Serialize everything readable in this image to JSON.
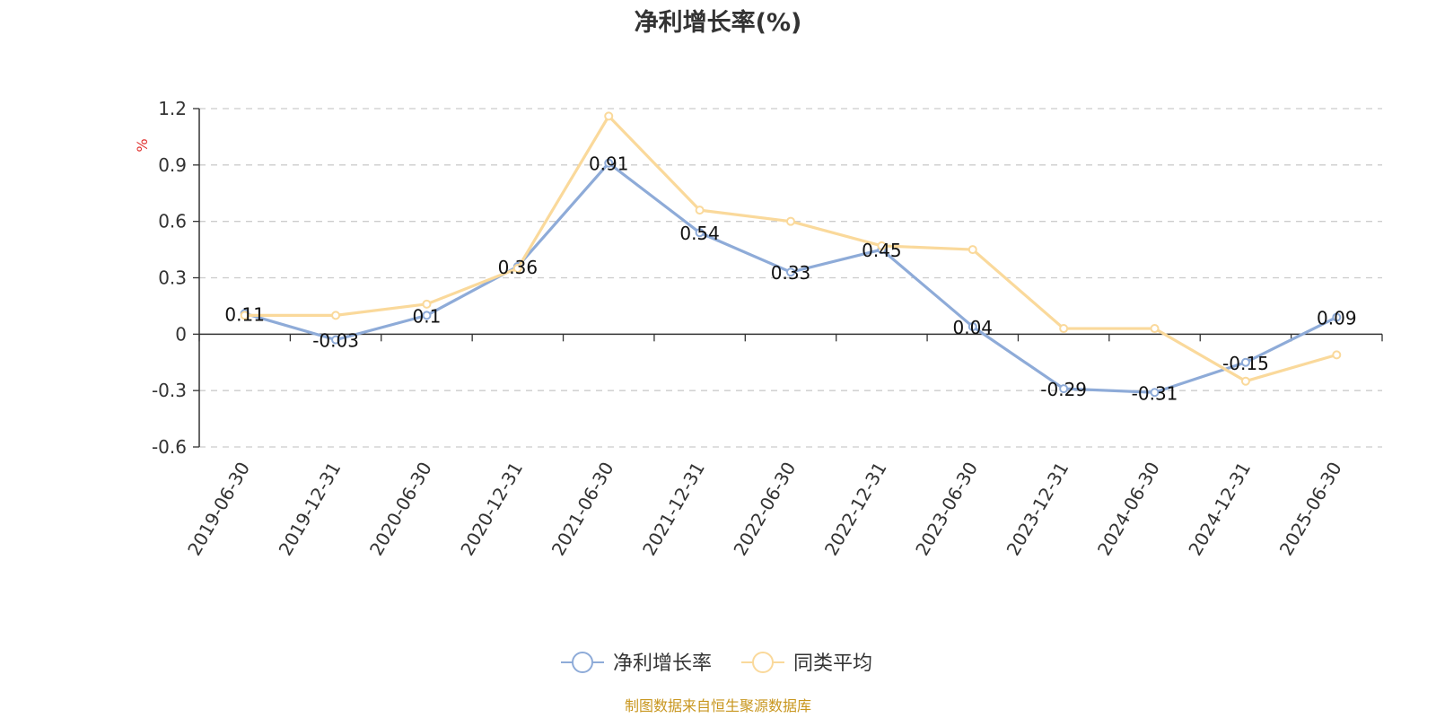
{
  "chart_data": {
    "type": "line",
    "title": "净利增长率(%)",
    "ylabel": "%",
    "xlabel": "",
    "ylim": [
      -0.6,
      1.2
    ],
    "yticks": [
      -0.6,
      -0.3,
      0,
      0.3,
      0.6,
      0.9,
      1.2
    ],
    "ytick_labels": [
      "-0.6",
      "-0.3",
      "0",
      "0.3",
      "0.6",
      "0.9",
      "1.2"
    ],
    "grid": true,
    "legend_position": "bottom",
    "categories": [
      "2019-06-30",
      "2019-12-31",
      "2020-06-30",
      "2020-12-31",
      "2021-06-30",
      "2021-12-31",
      "2022-06-30",
      "2022-12-31",
      "2023-06-30",
      "2023-12-31",
      "2024-06-30",
      "2024-12-31",
      "2025-06-30"
    ],
    "series": [
      {
        "name": "净利增长率",
        "color": "#8eabd8",
        "values": [
          0.11,
          -0.03,
          0.1,
          0.36,
          0.91,
          0.54,
          0.33,
          0.45,
          0.04,
          -0.29,
          -0.31,
          -0.15,
          0.09
        ],
        "labels": [
          "0.11",
          "-0.03",
          "0.1",
          "0.36",
          "0.91",
          "0.54",
          "0.33",
          "0.45",
          "0.04",
          "-0.29",
          "-0.31",
          "-0.15",
          "0.09"
        ]
      },
      {
        "name": "同类平均",
        "color": "#fad99b",
        "values": [
          0.1,
          0.1,
          0.16,
          0.35,
          1.16,
          0.66,
          0.6,
          0.47,
          0.45,
          0.03,
          0.03,
          -0.25,
          -0.11
        ]
      }
    ]
  },
  "footer": {
    "source": "制图数据来自恒生聚源数据库",
    "source_color": "#c8961e"
  },
  "colors": {
    "unit_label": "#e0312f",
    "axis": "#333333",
    "grid": "#cccccc"
  }
}
